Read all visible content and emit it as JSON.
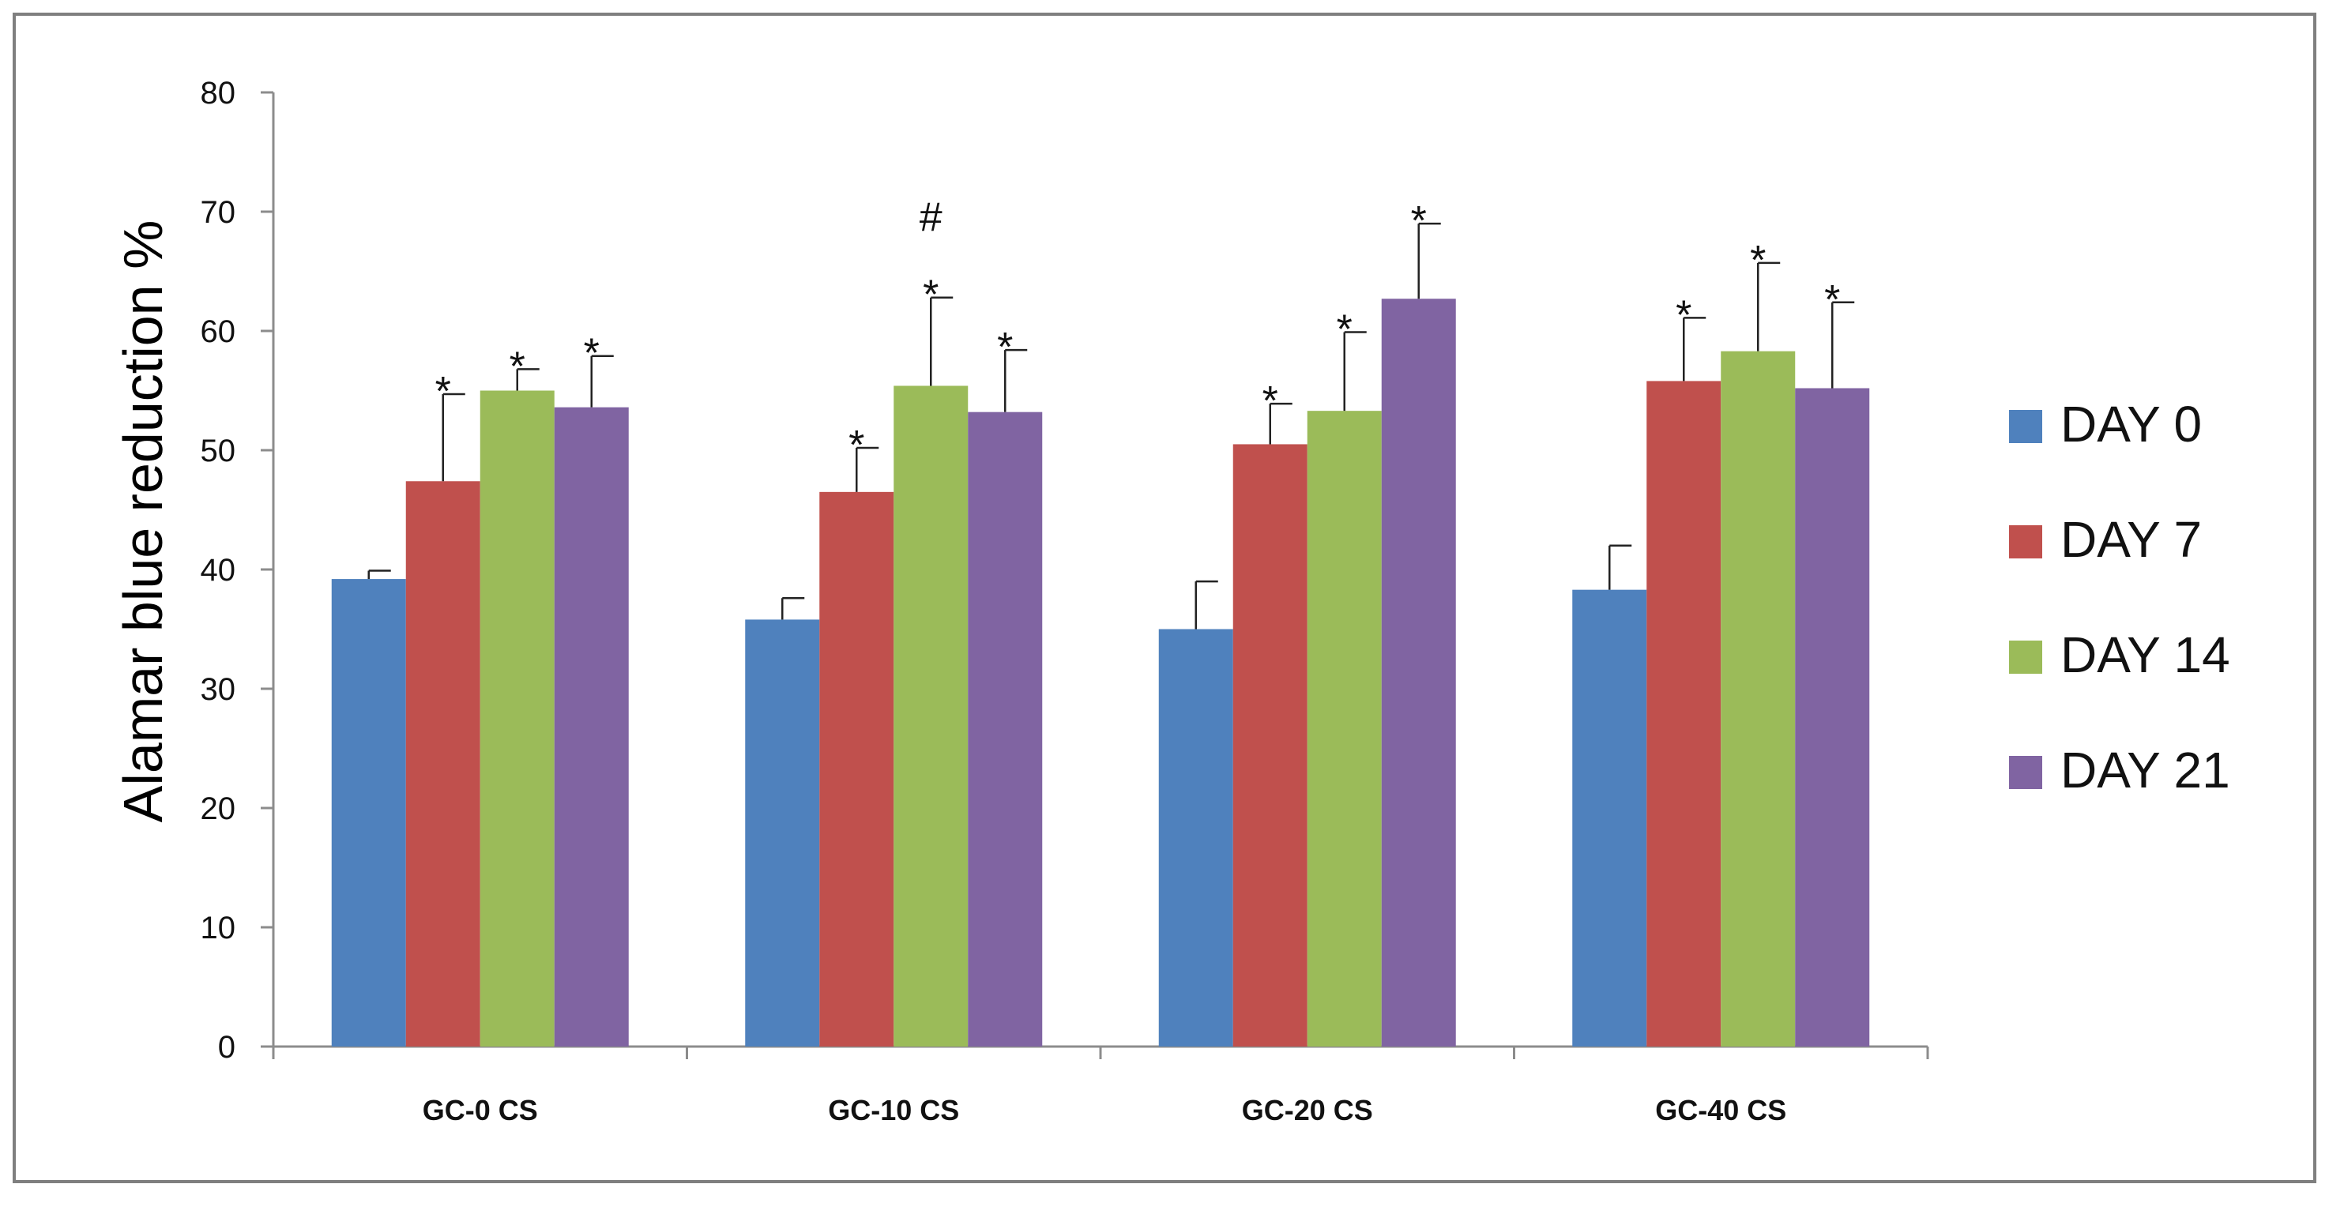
{
  "chart_data": {
    "type": "bar",
    "title": "",
    "xlabel": "",
    "ylabel": "Alamar blue reduction %",
    "ylim": [
      0,
      80
    ],
    "yticks": [
      0,
      10,
      20,
      30,
      40,
      50,
      60,
      70,
      80
    ],
    "grid": false,
    "legend_position": "right",
    "categories": [
      "GC-0 CS",
      "GC-10 CS",
      "GC-20 CS",
      "GC-40 CS"
    ],
    "series": [
      {
        "name": "DAY 0",
        "color": "#4F81BD",
        "values": [
          39.2,
          35.8,
          35.0,
          38.3
        ],
        "errors": [
          0.7,
          1.8,
          4.0,
          3.7
        ],
        "marks": [
          "",
          "",
          "",
          ""
        ]
      },
      {
        "name": "DAY 7",
        "color": "#C0504D",
        "values": [
          47.4,
          46.5,
          50.5,
          55.8
        ],
        "errors": [
          7.3,
          3.7,
          3.4,
          5.3
        ],
        "marks": [
          "*",
          "*",
          "*",
          "*"
        ]
      },
      {
        "name": "DAY 14",
        "color": "#9BBB59",
        "values": [
          55.0,
          55.4,
          53.3,
          58.3
        ],
        "errors": [
          1.8,
          7.4,
          6.6,
          7.4
        ],
        "marks": [
          "*",
          "*\n#",
          "*",
          "*"
        ]
      },
      {
        "name": "DAY 21",
        "color": "#8064A2",
        "values": [
          53.6,
          53.2,
          62.7,
          55.2
        ],
        "errors": [
          4.3,
          5.2,
          6.3,
          7.2
        ],
        "marks": [
          "*",
          "*",
          "*",
          "*"
        ]
      }
    ]
  }
}
